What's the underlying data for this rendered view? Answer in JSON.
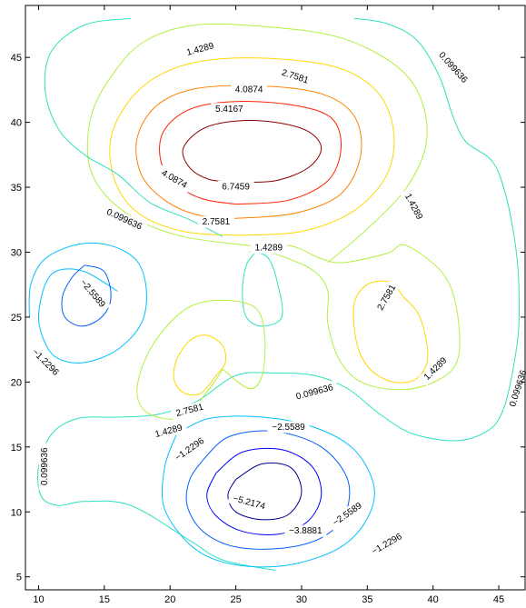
{
  "chart_data": {
    "type": "contour",
    "title": "",
    "xlabel": "",
    "ylabel": "",
    "xlim": [
      9,
      47
    ],
    "ylim": [
      4,
      49
    ],
    "grid": false,
    "x_ticks": [
      10,
      15,
      20,
      25,
      30,
      35,
      40,
      45
    ],
    "y_ticks": [
      5,
      10,
      15,
      20,
      25,
      30,
      35,
      40,
      45
    ],
    "levels": [
      -5.2174,
      -3.8881,
      -2.5589,
      -1.2296,
      0.099636,
      1.4289,
      2.7581,
      4.0874,
      5.4167,
      6.7459
    ],
    "level_colors": {
      "-5.2174": "#00008f",
      "-3.8881": "#0000ff",
      "-2.5589": "#005fff",
      "-1.2296": "#00c0ff",
      "0.099636": "#30e0c0",
      "1.4289": "#b0f040",
      "2.7581": "#ffd700",
      "4.0874": "#ff8000",
      "5.4167": "#ff2000",
      "6.7459": "#8b0000"
    },
    "contours": [
      {
        "level": 6.7459,
        "points": [
          [
            25,
            35.4
          ],
          [
            28,
            35.5
          ],
          [
            30.5,
            36.5
          ],
          [
            31.5,
            38
          ],
          [
            30.5,
            39.3
          ],
          [
            28,
            40
          ],
          [
            25,
            40.1
          ],
          [
            22.5,
            39.5
          ],
          [
            21,
            38
          ],
          [
            21.5,
            36.5
          ],
          [
            23,
            35.6
          ],
          [
            25,
            35.4
          ]
        ]
      },
      {
        "level": 5.4167,
        "points": [
          [
            25,
            33.7
          ],
          [
            29,
            34
          ],
          [
            32,
            35.5
          ],
          [
            33,
            38
          ],
          [
            32.3,
            40.3
          ],
          [
            29.5,
            41.3
          ],
          [
            25,
            41.6
          ],
          [
            21.5,
            41
          ],
          [
            19.5,
            39.3
          ],
          [
            19.3,
            37
          ],
          [
            20.5,
            35.2
          ],
          [
            22.5,
            34.1
          ],
          [
            25,
            33.7
          ]
        ]
      },
      {
        "level": 4.0874,
        "points": [
          [
            25,
            32.6
          ],
          [
            29.5,
            33
          ],
          [
            33,
            34.5
          ],
          [
            34.5,
            37.5
          ],
          [
            34,
            40.5
          ],
          [
            31.5,
            42.2
          ],
          [
            27,
            42.8
          ],
          [
            22,
            42.6
          ],
          [
            19,
            41.3
          ],
          [
            17.5,
            38.8
          ],
          [
            17.8,
            36
          ],
          [
            19.6,
            34
          ],
          [
            22,
            32.9
          ],
          [
            25,
            32.6
          ]
        ]
      },
      {
        "level": 2.7581,
        "points": [
          [
            25,
            31.3
          ],
          [
            30,
            31.6
          ],
          [
            34,
            33.2
          ],
          [
            36.5,
            36
          ],
          [
            37,
            39.3
          ],
          [
            35.8,
            42.3
          ],
          [
            32.8,
            44.2
          ],
          [
            28,
            44.9
          ],
          [
            23,
            44.8
          ],
          [
            19.5,
            43.8
          ],
          [
            17,
            41.8
          ],
          [
            15.5,
            38.8
          ],
          [
            15.8,
            35.5
          ],
          [
            17.6,
            33
          ],
          [
            21,
            31.6
          ],
          [
            25,
            31.3
          ]
        ]
      },
      {
        "level": 1.4289,
        "points": [
          [
            26,
            30
          ],
          [
            29,
            30.5
          ],
          [
            31.5,
            29.5
          ],
          [
            33.2,
            29.2
          ],
          [
            36.5,
            29.9
          ],
          [
            38,
            30.5
          ],
          [
            41,
            28
          ],
          [
            42,
            24
          ],
          [
            41.5,
            21
          ],
          [
            38.5,
            19.5
          ],
          [
            35,
            19.8
          ],
          [
            33,
            21.5
          ],
          [
            32,
            24.5
          ],
          [
            32,
            27
          ],
          [
            31,
            28.5
          ],
          [
            29,
            29.5
          ],
          [
            26,
            30.5
          ]
        ]
      },
      {
        "level": 1.4289,
        "points": [
          [
            32,
            29.2
          ],
          [
            35,
            31.8
          ],
          [
            38,
            35
          ],
          [
            39.5,
            38.5
          ],
          [
            39,
            42
          ],
          [
            37,
            44.5
          ],
          [
            33,
            46.5
          ],
          [
            28,
            47.3
          ],
          [
            22,
            47.5
          ],
          [
            18,
            46.2
          ],
          [
            15.5,
            43.5
          ],
          [
            14,
            40.5
          ],
          [
            13.8,
            37
          ],
          [
            15,
            34.5
          ],
          [
            17.5,
            32.5
          ],
          [
            21,
            31.2
          ],
          [
            26,
            30.5
          ]
        ]
      },
      {
        "level": 2.7581,
        "points": [
          [
            37.8,
            26.5
          ],
          [
            39,
            25
          ],
          [
            39.6,
            22
          ],
          [
            38.8,
            20.3
          ],
          [
            37,
            20
          ],
          [
            35.2,
            21
          ],
          [
            34.2,
            23
          ],
          [
            34,
            26
          ],
          [
            35,
            27.5
          ],
          [
            36.7,
            27.7
          ],
          [
            37.8,
            26.5
          ]
        ]
      },
      {
        "level": 0.099636,
        "points": [
          [
            17,
            48
          ],
          [
            13.5,
            47.5
          ],
          [
            11,
            45.5
          ],
          [
            10.5,
            42.5
          ],
          [
            11.5,
            39.5
          ],
          [
            13.5,
            37.5
          ],
          [
            16,
            36
          ],
          [
            18.5,
            33.8
          ],
          [
            21.5,
            32.5
          ],
          [
            24,
            31.2
          ]
        ]
      },
      {
        "level": 0.099636,
        "points": [
          [
            34,
            48
          ],
          [
            36.5,
            47.6
          ],
          [
            38.8,
            46.3
          ],
          [
            40.5,
            43.5
          ],
          [
            41.5,
            40.5
          ],
          [
            42.5,
            38.5
          ],
          [
            44.5,
            37
          ],
          [
            45.5,
            34.5
          ],
          [
            46.2,
            31
          ],
          [
            46.5,
            28
          ],
          [
            46.5,
            24
          ],
          [
            46,
            20.5
          ],
          [
            45.5,
            18.3
          ]
        ]
      },
      {
        "level": 0.099636,
        "points": [
          [
            26.5,
            30
          ],
          [
            27.5,
            29.5
          ],
          [
            28.2,
            27.5
          ],
          [
            28.5,
            25
          ],
          [
            27,
            24.3
          ],
          [
            25.8,
            25
          ],
          [
            25.5,
            27
          ],
          [
            25.8,
            29
          ],
          [
            26.5,
            30
          ]
        ]
      },
      {
        "level": 0.099636,
        "points": [
          [
            45.5,
            18.3
          ],
          [
            44.5,
            16.5
          ],
          [
            42,
            15.5
          ],
          [
            38.5,
            16
          ],
          [
            36,
            17.5
          ],
          [
            33.5,
            19.5
          ],
          [
            31,
            20.5
          ],
          [
            28,
            20.7
          ],
          [
            25,
            20.5
          ],
          [
            22,
            18.5
          ],
          [
            19,
            17.5
          ],
          [
            16,
            17.3
          ],
          [
            13,
            17.2
          ],
          [
            11,
            16
          ],
          [
            10,
            13.5
          ],
          [
            10.2,
            11.2
          ],
          [
            11.5,
            10.5
          ],
          [
            13.5,
            10.8
          ],
          [
            17,
            10.5
          ],
          [
            21.5,
            7.8
          ],
          [
            24,
            6.3
          ],
          [
            28,
            5.5
          ]
        ]
      },
      {
        "level": 1.4289,
        "points": [
          [
            24,
            21
          ],
          [
            26,
            19.5
          ],
          [
            27,
            20.5
          ],
          [
            27.2,
            23.5
          ],
          [
            26.5,
            25.7
          ],
          [
            24,
            26.3
          ],
          [
            21.5,
            25.8
          ],
          [
            19.5,
            24
          ],
          [
            18,
            21.5
          ],
          [
            17.5,
            19
          ],
          [
            18.5,
            17.5
          ],
          [
            21,
            17.3
          ],
          [
            23,
            19.5
          ],
          [
            24,
            21
          ]
        ]
      },
      {
        "level": 2.7581,
        "points": [
          [
            23.5,
            20.5
          ],
          [
            24.2,
            21.5
          ],
          [
            24,
            22.8
          ],
          [
            22.8,
            23.6
          ],
          [
            21.5,
            23.2
          ],
          [
            20.5,
            21.7
          ],
          [
            20.3,
            20.2
          ],
          [
            21,
            19.2
          ],
          [
            22.3,
            19.1
          ],
          [
            23.5,
            20.5
          ]
        ]
      },
      {
        "level": -1.2296,
        "points": [
          [
            16,
            27
          ],
          [
            13.5,
            28.5
          ],
          [
            11.5,
            28.6
          ],
          [
            10.5,
            27.5
          ],
          [
            10,
            25
          ],
          [
            10.5,
            23
          ],
          [
            11.5,
            21.8
          ],
          [
            13.5,
            21.5
          ],
          [
            16,
            22.5
          ],
          [
            17.8,
            24.5
          ],
          [
            18.2,
            27
          ],
          [
            17.5,
            29.3
          ],
          [
            15.5,
            30.5
          ],
          [
            13,
            30.6
          ],
          [
            10.5,
            29.5
          ],
          [
            9.4,
            27.5
          ],
          [
            9.3,
            25
          ]
        ]
      },
      {
        "level": -2.5589,
        "points": [
          [
            13.5,
            29
          ],
          [
            15,
            28.5
          ],
          [
            15.5,
            26.5
          ],
          [
            14.8,
            25
          ],
          [
            13.3,
            24.3
          ],
          [
            12,
            25
          ],
          [
            11.8,
            26.5
          ],
          [
            12.5,
            28
          ],
          [
            13.5,
            29
          ]
        ]
      },
      {
        "level": -1.2296,
        "points": [
          [
            20.5,
            16
          ],
          [
            23,
            17.2
          ],
          [
            27,
            17.3
          ],
          [
            31,
            16.5
          ],
          [
            34,
            14.8
          ],
          [
            35.5,
            12
          ],
          [
            35,
            9.5
          ],
          [
            33,
            7.3
          ],
          [
            29.5,
            6
          ],
          [
            26,
            5.8
          ],
          [
            23,
            6.5
          ],
          [
            21,
            8
          ],
          [
            19.5,
            10.5
          ],
          [
            19.6,
            13.5
          ],
          [
            20.5,
            16
          ]
        ]
      },
      {
        "level": -2.5589,
        "points": [
          [
            22.5,
            14
          ],
          [
            24.5,
            15.8
          ],
          [
            28,
            16.2
          ],
          [
            31.5,
            15
          ],
          [
            33.5,
            12.5
          ],
          [
            33.3,
            9.8
          ],
          [
            31.5,
            8
          ],
          [
            28.5,
            7.2
          ],
          [
            25,
            7.3
          ],
          [
            22.5,
            8.5
          ],
          [
            21.3,
            10.5
          ],
          [
            21.5,
            12.5
          ],
          [
            22.5,
            14
          ]
        ]
      },
      {
        "level": -3.8881,
        "points": [
          [
            23.5,
            13
          ],
          [
            25.5,
            14.6
          ],
          [
            28.5,
            14.8
          ],
          [
            30.8,
            13.5
          ],
          [
            31.5,
            11.3
          ],
          [
            30.5,
            9.3
          ],
          [
            28.3,
            8.3
          ],
          [
            25.5,
            8.5
          ],
          [
            23.5,
            9.7
          ],
          [
            22.8,
            11.3
          ],
          [
            23.5,
            13
          ]
        ]
      },
      {
        "level": -5.2174,
        "points": [
          [
            25,
            12.5
          ],
          [
            27,
            13.7
          ],
          [
            29.2,
            13.4
          ],
          [
            30,
            11.5
          ],
          [
            29,
            9.8
          ],
          [
            27,
            9.4
          ],
          [
            25,
            10
          ],
          [
            24.4,
            11.3
          ],
          [
            25,
            12.5
          ]
        ]
      }
    ],
    "contour_labels": [
      {
        "text": "1.4289",
        "x": 22.3,
        "y": 45.6,
        "angle": -15
      },
      {
        "text": "2.7581",
        "x": 29.5,
        "y": 43.5,
        "angle": 18
      },
      {
        "text": "4.0874",
        "x": 26,
        "y": 42.5,
        "angle": 0
      },
      {
        "text": "5.4167",
        "x": 24.5,
        "y": 41,
        "angle": 0
      },
      {
        "text": "6.7459",
        "x": 25,
        "y": 35,
        "angle": 0
      },
      {
        "text": "4.0874",
        "x": 20.3,
        "y": 35.6,
        "angle": 30
      },
      {
        "text": "2.7581",
        "x": 23.5,
        "y": 32.3,
        "angle": 0
      },
      {
        "text": "1.4289",
        "x": 27.5,
        "y": 30.3,
        "angle": 0
      },
      {
        "text": "0.099636",
        "x": 16.5,
        "y": 32.5,
        "angle": 25
      },
      {
        "text": "0.099636",
        "x": 41.5,
        "y": 44.2,
        "angle": 48
      },
      {
        "text": "1.4289",
        "x": 38.5,
        "y": 33.5,
        "angle": 62
      },
      {
        "text": "2.7581",
        "x": 36.5,
        "y": 26.5,
        "angle": -60
      },
      {
        "text": "1.4289",
        "x": 40.2,
        "y": 21,
        "angle": -45
      },
      {
        "text": "0.099636",
        "x": 46.5,
        "y": 19.5,
        "angle": -72
      },
      {
        "text": "-2.5589",
        "x": 14.1,
        "y": 26.8,
        "angle": 50
      },
      {
        "text": "-1.2296",
        "x": 10.5,
        "y": 21.5,
        "angle": 45
      },
      {
        "text": "2.7581",
        "x": 21.5,
        "y": 17.8,
        "angle": -15
      },
      {
        "text": "1.4289",
        "x": 19.9,
        "y": 16.2,
        "angle": -15
      },
      {
        "text": "0.099636",
        "x": 31,
        "y": 19.2,
        "angle": -15
      },
      {
        "text": "-2.5589",
        "x": 29,
        "y": 16.5,
        "angle": 0
      },
      {
        "text": "-1.2296",
        "x": 21.5,
        "y": 14.8,
        "angle": -35
      },
      {
        "text": "0.099636",
        "x": 10.5,
        "y": 13.5,
        "angle": -90
      },
      {
        "text": "-5.2174",
        "x": 26,
        "y": 10.7,
        "angle": 15
      },
      {
        "text": "-3.8881",
        "x": 30.3,
        "y": 8.5,
        "angle": 0
      },
      {
        "text": "-2.5589",
        "x": 33.5,
        "y": 9.8,
        "angle": -35
      },
      {
        "text": "-1.2296",
        "x": 36.5,
        "y": 7.5,
        "angle": -30
      }
    ]
  }
}
